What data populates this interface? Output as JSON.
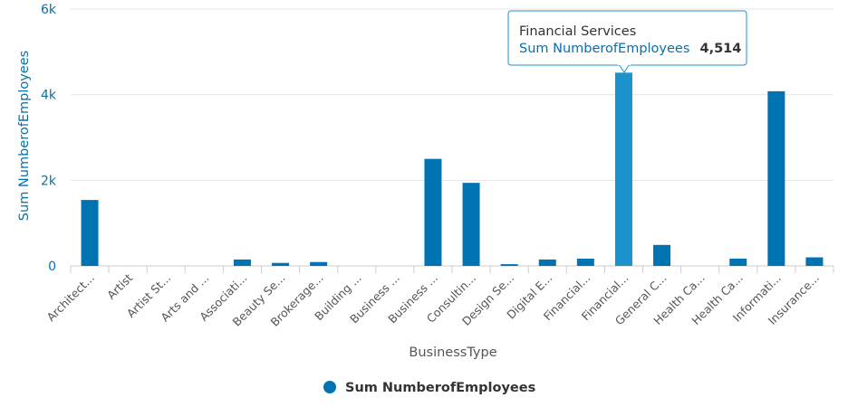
{
  "chart_data": {
    "type": "bar",
    "categories": [
      "Architect...",
      "Artist",
      "Artist St...",
      "Arts and ...",
      "Associati...",
      "Beauty Se...",
      "Brokerage...",
      "Building ...",
      "Business ...",
      "Business ...",
      "Consultin...",
      "Design Se...",
      "Digital E...",
      "Financial...",
      "Financial...",
      "General C...",
      "Health Ca...",
      "Health Ca...",
      "Informati...",
      "Insurance..."
    ],
    "series": [
      {
        "name": "Sum NumberofEmployees",
        "values": [
          1540,
          0,
          0,
          0,
          150,
          70,
          90,
          0,
          0,
          2500,
          1940,
          40,
          150,
          170,
          4514,
          490,
          0,
          170,
          4080,
          200
        ]
      }
    ],
    "xlabel": "BusinessType",
    "ylabel": "Sum NumberofEmployees",
    "ylim": [
      0,
      6000
    ],
    "yticks": [
      {
        "value": 0,
        "label": "0"
      },
      {
        "value": 2000,
        "label": "2k"
      },
      {
        "value": 4000,
        "label": "4k"
      },
      {
        "value": 6000,
        "label": "6k"
      }
    ],
    "grid": true,
    "legend": {
      "position": "bottom-center",
      "label": "Sum NumberofEmployees"
    },
    "highlight_index": 14,
    "tooltip": {
      "title": "Financial Services",
      "series_label": "Sum NumberofEmployees",
      "value": "4,514"
    },
    "colors": {
      "bar": "#0074b3",
      "bar_highlight": "#1c92cc",
      "grid": "#e6e6e6",
      "axis_text": "#0a6fa8"
    }
  }
}
